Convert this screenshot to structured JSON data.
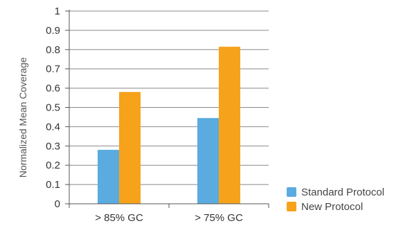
{
  "chart_data": {
    "type": "bar",
    "title": "",
    "xlabel": "",
    "ylabel": "Normalized Mean Coverage",
    "categories": [
      "> 85% GC",
      "> 75% GC"
    ],
    "series": [
      {
        "name": "Standard Protocol",
        "color": "#5aabe0",
        "values": [
          0.28,
          0.445
        ]
      },
      {
        "name": "New Protocol",
        "color": "#f7a21b",
        "values": [
          0.58,
          0.815
        ]
      }
    ],
    "ylim": [
      0,
      1
    ],
    "yticks": [
      "0",
      "0.1",
      "0.2",
      "0.3",
      "0.4",
      "0.5",
      "0.6",
      "0.7",
      "0.8",
      "0.9",
      "1"
    ],
    "grid": true,
    "legend_position": "bottom-right"
  }
}
